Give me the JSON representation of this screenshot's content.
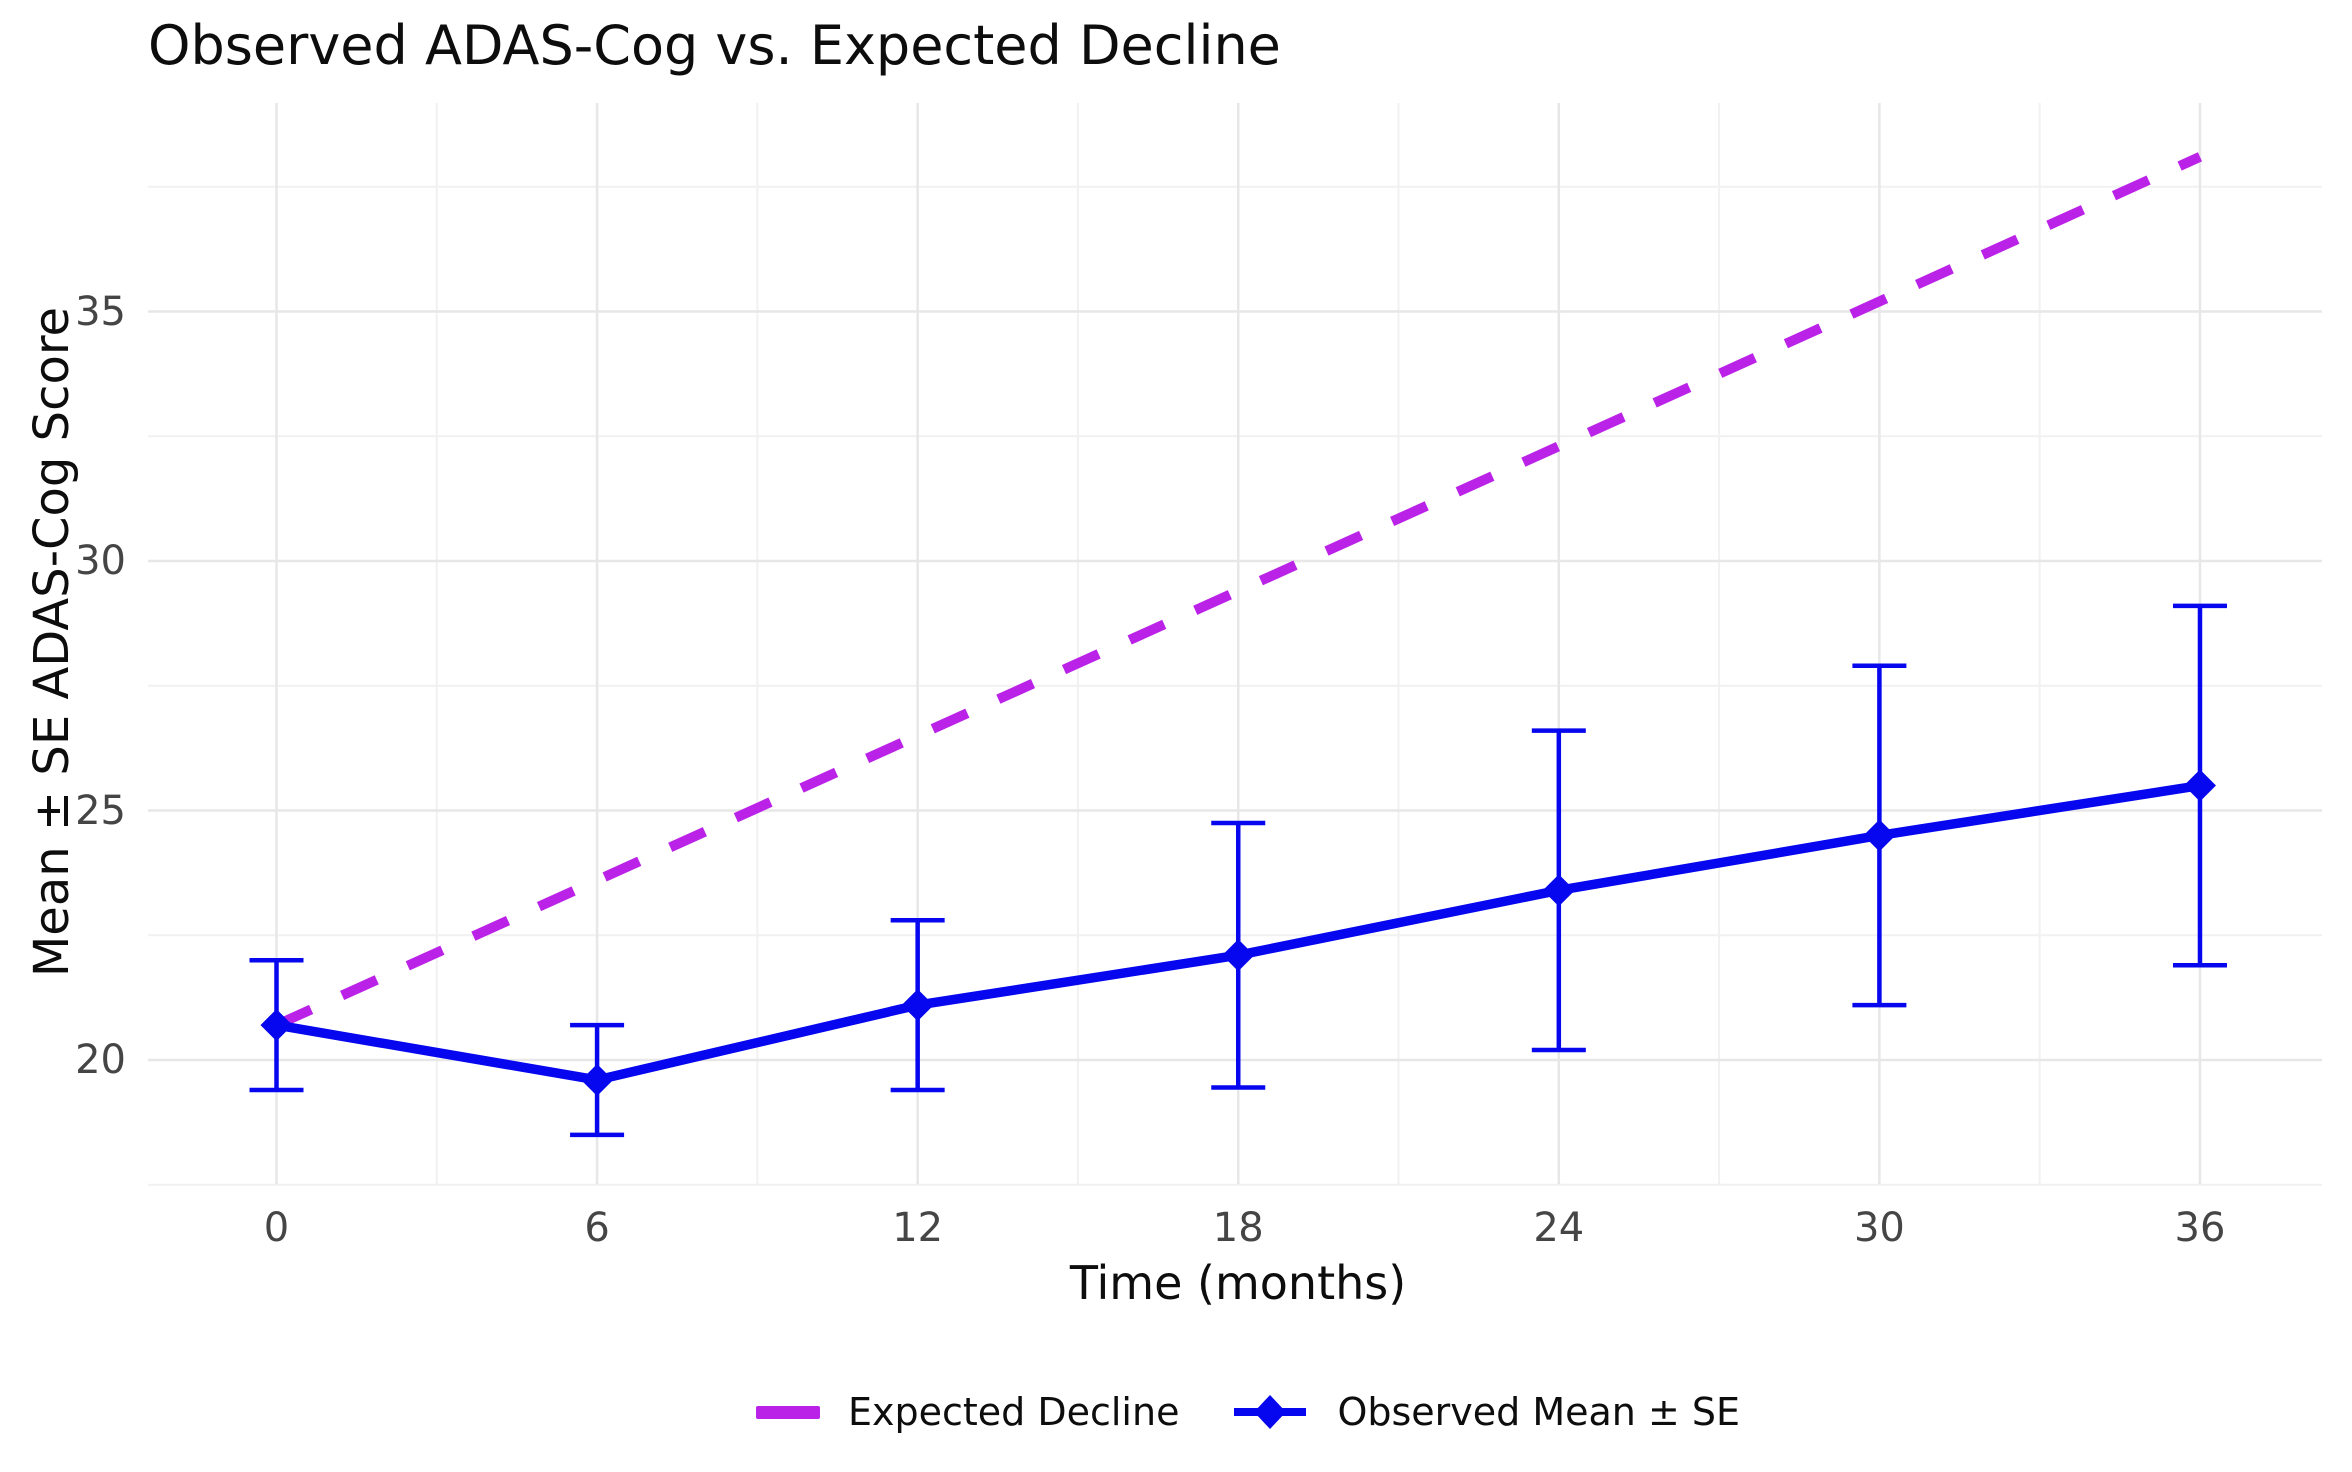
{
  "chart_data": {
    "type": "line",
    "title": "Observed ADAS-Cog vs. Expected Decline",
    "xlabel": "Time (months)",
    "ylabel": "Mean ± SE ADAS-Cog Score",
    "x_ticks": [
      0,
      6,
      12,
      18,
      24,
      30,
      36
    ],
    "y_ticks": [
      20,
      25,
      30,
      35
    ],
    "xlim": [
      -2.4,
      38.3
    ],
    "ylim": [
      17.5,
      39.2
    ],
    "grid": "major and minor, light gray, no panel border",
    "legend_position": "bottom-center",
    "background_color": "#ffffff",
    "major_grid_color": "#e7e7e7",
    "minor_grid_color": "#f1f1f1",
    "series": [
      {
        "name": "Expected Decline",
        "style": "dashed-line",
        "color": "#bb22e8",
        "x": [
          0,
          36
        ],
        "y": [
          20.7,
          38.1
        ]
      },
      {
        "name": "Observed Mean ± SE",
        "style": "line-diamond-markers-errorbars",
        "color": "#0606ef",
        "x": [
          0,
          6,
          12,
          18,
          24,
          30,
          36
        ],
        "y": [
          20.7,
          19.6,
          21.1,
          22.1,
          23.4,
          24.5,
          25.5
        ],
        "se": [
          1.3,
          1.1,
          1.7,
          2.65,
          3.2,
          3.4,
          3.6
        ]
      }
    ]
  }
}
